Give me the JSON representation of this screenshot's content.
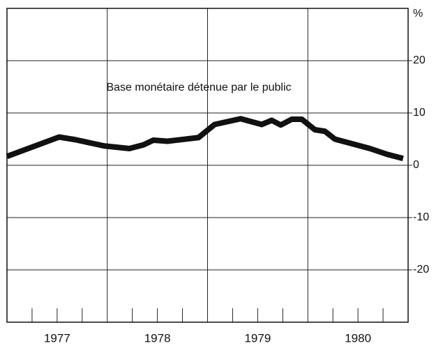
{
  "chart_data": {
    "type": "line",
    "annotation": "Base monétaire détenue par le public",
    "y_unit": "%",
    "categories": [
      "1977",
      "1978",
      "1979",
      "1980"
    ],
    "x": [
      1977.0,
      1977.52,
      1977.68,
      1977.97,
      1978.22,
      1978.36,
      1978.46,
      1978.6,
      1978.91,
      1979.07,
      1979.33,
      1979.54,
      1979.64,
      1979.73,
      1979.84,
      1979.94,
      1980.07,
      1980.17,
      1980.27,
      1980.62,
      1980.79,
      1980.95
    ],
    "series": [
      {
        "name": "Base monétaire détenue par le public",
        "color": "#111111",
        "values": [
          1.7,
          5.4,
          4.9,
          3.7,
          3.2,
          3.9,
          4.8,
          4.6,
          5.3,
          7.8,
          8.9,
          7.8,
          8.6,
          7.7,
          8.8,
          8.8,
          6.8,
          6.5,
          5.0,
          3.2,
          2.1,
          1.3
        ]
      }
    ],
    "xlim": [
      1977,
      1981
    ],
    "xticks": [
      1977,
      1978,
      1979,
      1980,
      1981
    ],
    "xminorticks": [
      1977.25,
      1977.5,
      1977.75,
      1978.25,
      1978.5,
      1978.75,
      1979.25,
      1979.5,
      1979.75,
      1980.25,
      1980.5,
      1980.75
    ],
    "ylim": [
      -30,
      30
    ],
    "yticks": [
      20,
      10,
      0,
      -10,
      -20
    ],
    "grid": true
  }
}
